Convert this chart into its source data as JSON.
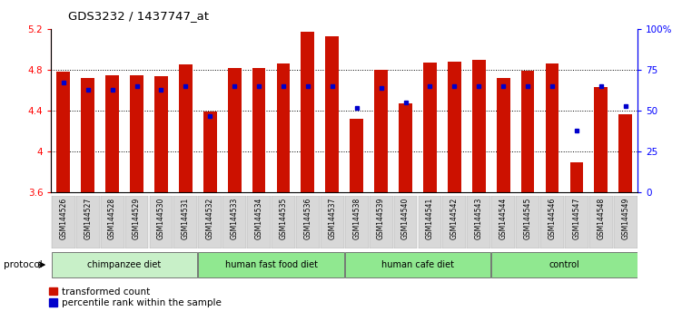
{
  "title": "GDS3232 / 1437747_at",
  "samples": [
    "GSM144526",
    "GSM144527",
    "GSM144528",
    "GSM144529",
    "GSM144530",
    "GSM144531",
    "GSM144532",
    "GSM144533",
    "GSM144534",
    "GSM144535",
    "GSM144536",
    "GSM144537",
    "GSM144538",
    "GSM144539",
    "GSM144540",
    "GSM144541",
    "GSM144542",
    "GSM144543",
    "GSM144544",
    "GSM144545",
    "GSM144546",
    "GSM144547",
    "GSM144548",
    "GSM144549"
  ],
  "transformed_count": [
    4.78,
    4.72,
    4.75,
    4.75,
    4.74,
    4.85,
    4.39,
    4.82,
    4.82,
    4.86,
    5.17,
    5.13,
    4.32,
    4.8,
    4.47,
    4.87,
    4.88,
    4.9,
    4.72,
    4.79,
    4.86,
    3.9,
    4.63,
    4.37
  ],
  "percentile_rank": [
    67,
    63,
    63,
    65,
    63,
    65,
    47,
    65,
    65,
    65,
    65,
    65,
    52,
    64,
    55,
    65,
    65,
    65,
    65,
    65,
    65,
    38,
    65,
    53
  ],
  "ylim_left": [
    3.6,
    5.2
  ],
  "ylim_right": [
    0,
    100
  ],
  "bar_color": "#cc1100",
  "dot_color": "#0000cc",
  "group_defs": [
    {
      "label": "chimpanzee diet",
      "start": 0,
      "end": 5,
      "color": "#c8f0c8"
    },
    {
      "label": "human fast food diet",
      "start": 6,
      "end": 11,
      "color": "#90e890"
    },
    {
      "label": "human cafe diet",
      "start": 12,
      "end": 17,
      "color": "#90e890"
    },
    {
      "label": "control",
      "start": 18,
      "end": 23,
      "color": "#90e890"
    }
  ],
  "tick_bg_color": "#d8d8d8"
}
